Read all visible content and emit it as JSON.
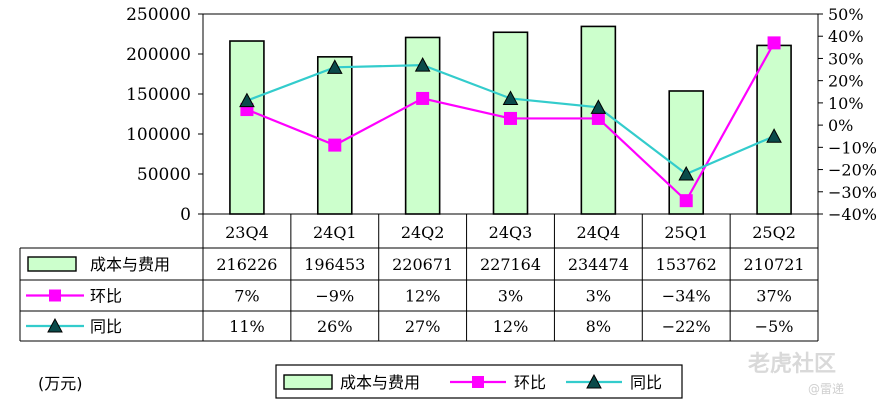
{
  "chart_data": {
    "type": "bar",
    "categories": [
      "23Q4",
      "24Q1",
      "24Q2",
      "24Q3",
      "24Q4",
      "25Q1",
      "25Q2"
    ],
    "series": [
      {
        "name": "成本与费用",
        "type": "bar",
        "axis": "left",
        "color": "#ccffcc",
        "values": [
          216226,
          196453,
          220671,
          227164,
          234474,
          153762,
          210721
        ],
        "labels": [
          "216226",
          "196453",
          "220671",
          "227164",
          "234474",
          "153762",
          "210721"
        ]
      },
      {
        "name": "环比",
        "type": "line",
        "axis": "right",
        "color": "#ff00ff",
        "marker": "square",
        "values": [
          7,
          -9,
          12,
          3,
          3,
          -34,
          37
        ],
        "labels": [
          "7%",
          "-9%",
          "12%",
          "3%",
          "3%",
          "-34%",
          "37%"
        ]
      },
      {
        "name": "同比",
        "type": "line",
        "axis": "right",
        "color": "#33cccc",
        "marker": "triangle",
        "values": [
          11,
          26,
          27,
          12,
          8,
          -22,
          -5
        ],
        "labels": [
          "11%",
          "26%",
          "27%",
          "12%",
          "8%",
          "-22%",
          "-5%"
        ]
      }
    ],
    "y_left": {
      "min": 0,
      "max": 250000,
      "ticks": [
        "0",
        "50000",
        "100000",
        "150000",
        "200000",
        "250000"
      ]
    },
    "y_right": {
      "min": -40,
      "max": 50,
      "ticks": [
        "-40%",
        "-30%",
        "-20%",
        "-10%",
        "0%",
        "10%",
        "20%",
        "30%",
        "40%",
        "50%"
      ]
    },
    "unit": "(万元)",
    "legend": [
      "成本与费用",
      "环比",
      "同比"
    ],
    "legend_position": "bottom",
    "grid": false,
    "data_table": true
  },
  "watermark": {
    "text": "老虎社区",
    "sub": "@雷递"
  }
}
